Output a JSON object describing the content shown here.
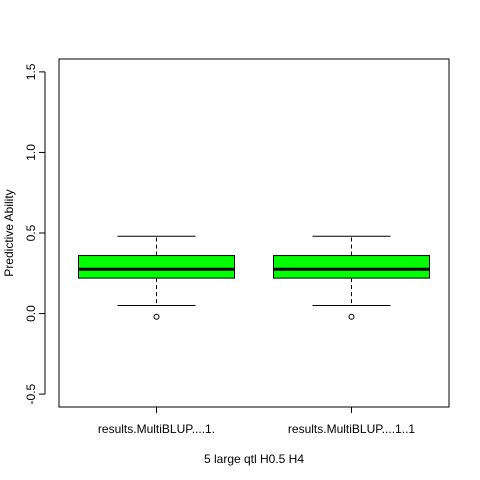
{
  "chart_data": {
    "type": "boxplot",
    "title": "",
    "xlabel": "5 large qtl H0.5 H4",
    "ylabel": "Predictive Ability",
    "ylim": [
      -0.58,
      1.58
    ],
    "y_ticks": [
      -0.5,
      0.0,
      0.5,
      1.0,
      1.5
    ],
    "y_tick_labels": [
      "-0.5",
      "0.0",
      "0.5",
      "1.0",
      "1.5"
    ],
    "categories": [
      "results.MultiBLUP....1.",
      "results.MultiBLUP....1..1"
    ],
    "boxes": [
      {
        "name": "results.MultiBLUP....1.",
        "whisker_low": 0.05,
        "q1": 0.22,
        "median": 0.275,
        "q3": 0.36,
        "whisker_high": 0.48,
        "outliers": [
          -0.02
        ]
      },
      {
        "name": "results.MultiBLUP....1..1",
        "whisker_low": 0.05,
        "q1": 0.22,
        "median": 0.275,
        "q3": 0.36,
        "whisker_high": 0.48,
        "outliers": [
          -0.02
        ]
      }
    ],
    "box_color": "#00FF00",
    "grid": false,
    "legend": "none"
  }
}
